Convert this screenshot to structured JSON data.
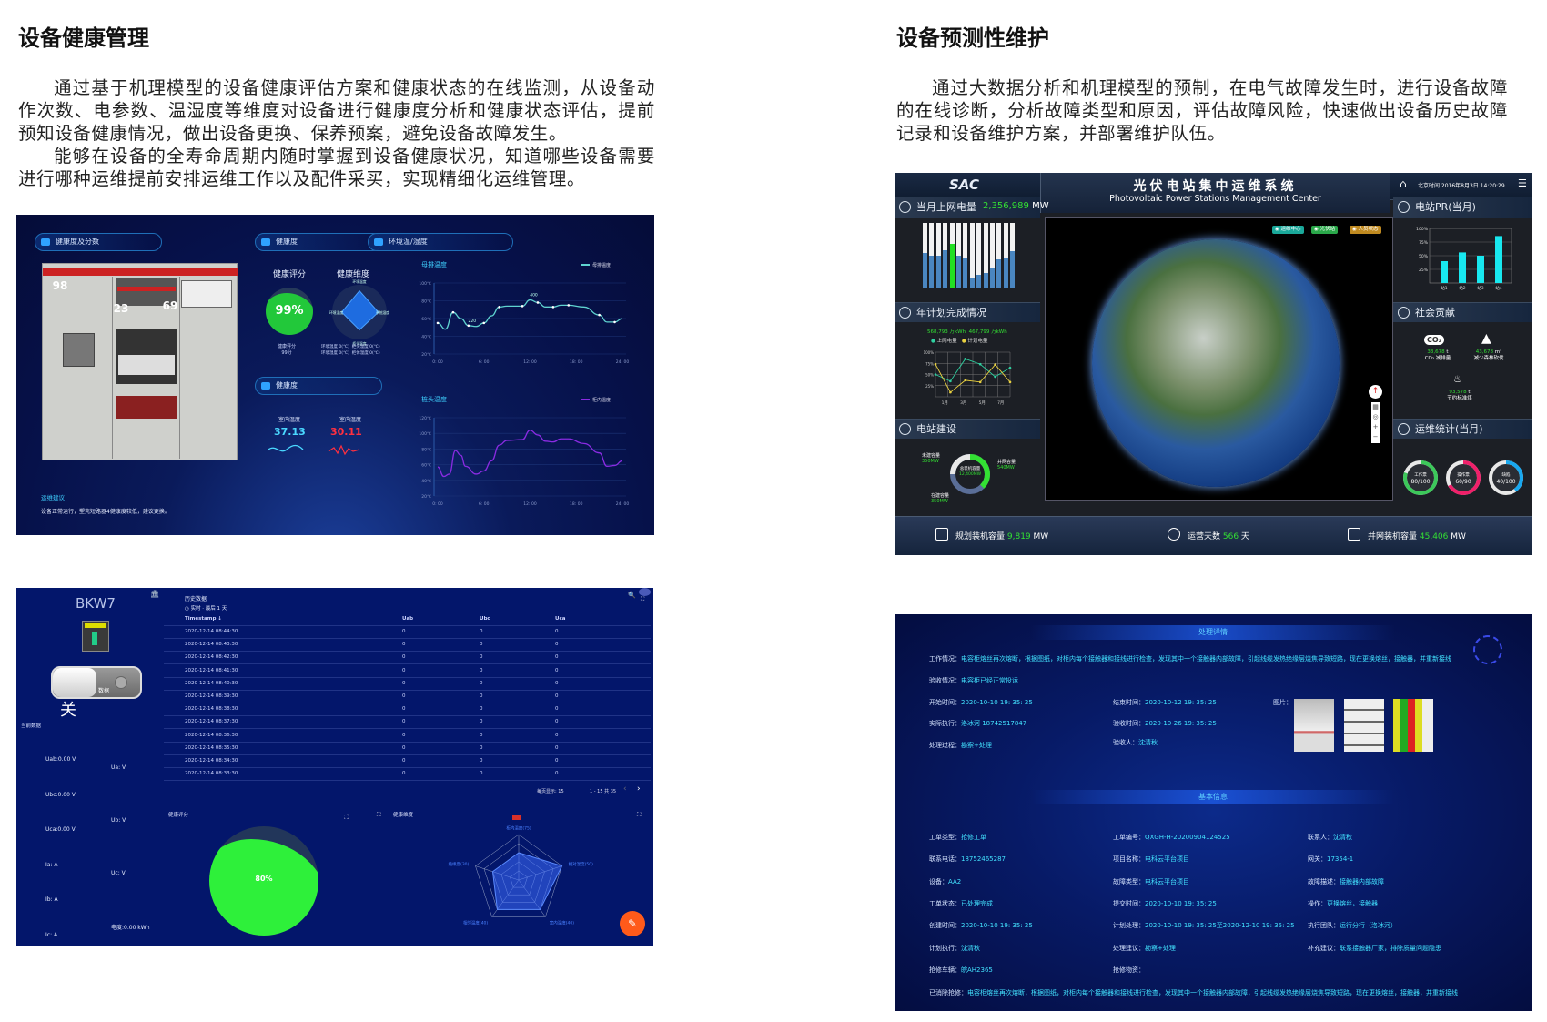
{
  "left": {
    "title": "设备健康管理",
    "paragraphs": [
      "通过基于机理模型的设备健康评估方案和健康状态的在线监测，从设备动作次数、电参数、温湿度等维度对设备进行健康度分析和健康状态评估，提前预知设备健康情况，做出设备更换、保养预案，避免设备故障发生。",
      "能够在设备的全寿命周期内随时掌握到设备健康状况，知道哪些设备需要进行哪种运维提前安排运维工作以及配件采买，实现精细化运维管理。"
    ]
  },
  "right": {
    "title": "设备预测性维护",
    "paragraphs": [
      "通过大数据分析和机理模型的预制，在电气故障发生时，进行设备故障的在线诊断，分析故障类型和原因，评估故障风险，快速做出设备历史故障记录和设备维护方案，并部署维护队伍。"
    ]
  },
  "panelA": {
    "sec_health_score": "健康度及分数",
    "sec_health": "健康度",
    "sec_health2": "健康度",
    "sec_env": "环境温/湿度",
    "badges": [
      {
        "value": "98",
        "color": "#2bb34a"
      },
      {
        "value": "23",
        "color": "#e8202a"
      },
      {
        "value": "69",
        "color": "#e0962a"
      }
    ],
    "score_title": "健康评分",
    "score_value": "99%",
    "score_level": 0.99,
    "score_caption": "健康评分",
    "score_points": "99分",
    "dim_title": "健康维度",
    "dim_labels": [
      "环境温度",
      "系统湿度",
      "柜头温度",
      "环境湿度"
    ],
    "dim_levels": [
      0.9,
      0.8,
      0.75,
      0.75
    ],
    "dim_readings": [
      "环境温度 0(℃)",
      "柜头温度 0(℃)",
      "环境湿度 0(℃)",
      "柜体温度 0(℃)"
    ],
    "indoor1_label": "室内温度",
    "indoor1_value": "37.13",
    "indoor2_label": "室内温度",
    "indoor2_value": "30.11",
    "advice_title": "运维建议",
    "advice_text": "设备正常运行，塑壳短路器4健康度较低，建议更换。",
    "chart_busbar": {
      "type": "line",
      "title": "母排温度",
      "legend": "母排温度",
      "color": "#5fd3d0",
      "ylim": [
        20,
        100
      ],
      "yticks": [
        "20℃",
        "40℃",
        "60℃",
        "80℃",
        "100℃"
      ],
      "xticks": [
        "0: 00",
        "6: 00",
        "12: 00",
        "18: 00",
        "24: 00"
      ],
      "x": [
        0,
        1,
        2,
        3,
        4,
        5,
        6,
        7,
        8,
        9,
        11,
        12,
        13,
        14,
        15,
        16,
        17,
        19,
        21,
        22,
        23,
        24
      ],
      "y": [
        55,
        48,
        67,
        60,
        52,
        51,
        55,
        63,
        73,
        74,
        74,
        81,
        78,
        73,
        73,
        75,
        75,
        73,
        64,
        56,
        56,
        60
      ],
      "annotations": [
        {
          "x": 4,
          "label": "220"
        },
        {
          "x": 12,
          "label": "400"
        }
      ]
    },
    "chart_terminal": {
      "type": "line",
      "title": "桩头温度",
      "legend": "柜内温度",
      "color": "#8a2be2",
      "ylim": [
        20,
        120
      ],
      "yticks": [
        "20℃",
        "40℃",
        "60℃",
        "80℃",
        "100℃",
        "120℃"
      ],
      "xticks": [
        "0: 00",
        "6: 00",
        "12: 00",
        "18: 00",
        "24: 00"
      ],
      "x": [
        0,
        0.8,
        1.5,
        2.3,
        3,
        3.6,
        5,
        6,
        7,
        8,
        9,
        11,
        12,
        13,
        14,
        15,
        16,
        17,
        19,
        21,
        22,
        23,
        24
      ],
      "y": [
        57,
        45,
        48,
        78,
        72,
        58,
        48,
        52,
        65,
        85,
        91,
        92,
        104,
        98,
        90,
        89,
        93,
        93,
        87,
        75,
        58,
        59,
        65
      ]
    }
  },
  "panelB": {
    "device_name": "BKW7",
    "switch_label": "数据",
    "switch_state": "关",
    "current_data": "当前数据",
    "readings_left": [
      "Uab:0.00 V",
      "Ubc:0.00 V",
      "Uca:0.00 V",
      "Ia: A",
      "Ib: A",
      "Ic: A"
    ],
    "readings_right": [
      "Ua: V",
      "Ub: V",
      "Uc: V",
      "电度:0.00 kWh"
    ],
    "history_title": "历史数据",
    "history_range": "实时 · 最后 1 天",
    "columns": [
      "Timestamp ↓",
      "Uab",
      "Ubc",
      "Uca"
    ],
    "rows": [
      [
        "2020-12-14 08:44:30",
        "0",
        "0",
        "0"
      ],
      [
        "2020-12-14 08:43:30",
        "0",
        "0",
        "0"
      ],
      [
        "2020-12-14 08:42:30",
        "0",
        "0",
        "0"
      ],
      [
        "2020-12-14 08:41:30",
        "0",
        "0",
        "0"
      ],
      [
        "2020-12-14 08:40:30",
        "0",
        "0",
        "0"
      ],
      [
        "2020-12-14 08:39:30",
        "0",
        "0",
        "0"
      ],
      [
        "2020-12-14 08:38:30",
        "0",
        "0",
        "0"
      ],
      [
        "2020-12-14 08:37:30",
        "0",
        "0",
        "0"
      ],
      [
        "2020-12-14 08:36:30",
        "0",
        "0",
        "0"
      ],
      [
        "2020-12-14 08:35:30",
        "0",
        "0",
        "0"
      ],
      [
        "2020-12-14 08:34:30",
        "0",
        "0",
        "0"
      ],
      [
        "2020-12-14 08:33:30",
        "0",
        "0",
        "0"
      ]
    ],
    "page_size_label": "每页显示: 15",
    "page_range": "1 - 15 共 35",
    "prev": "‹",
    "next": "›",
    "score_title": "健康评分",
    "score_value": "80%",
    "score_level": 0.8,
    "dim_title": "健康维度",
    "radar": {
      "type": "radar",
      "labels": [
        "柜内温度(75)",
        "相对湿度(50)",
        "室内温度(40)",
        "相邻温度(40)",
        "绝缘度(30)"
      ],
      "levels": [
        0.6,
        1.0,
        0.8,
        0.8,
        0.6
      ],
      "color": "#3b6cff"
    }
  },
  "panelC": {
    "logo": "SAC",
    "title": "光伏电站集中运维系统",
    "subtitle": "Photovoltaic Power Stations Management Center",
    "datetime": "北京时间 2016年8月3日 14:20:29",
    "monthly_label": "当月上网电量",
    "monthly_value": "2,356,989",
    "monthly_unit": "MW",
    "monthly_bars": {
      "type": "bar",
      "values": [
        0.53,
        0.5,
        0.49,
        0.58,
        0.68,
        0.5,
        0.47,
        0.16,
        0.2,
        0.23,
        0.3,
        0.43,
        0.47,
        0.57
      ],
      "highlight_index": 4
    },
    "plan_label": "年计划完成情况",
    "plan_value1": "568,793 万kWh",
    "plan_value2": "467,799 万kWh",
    "plan_legend1": "上网电量",
    "plan_legend2": "计划电量",
    "plan_chart": {
      "type": "line",
      "yticks": [
        "25%",
        "50%",
        "75%",
        "100%"
      ],
      "xticks": [
        "1月",
        "3月",
        "5月",
        "7月"
      ],
      "ylim": [
        0,
        100
      ],
      "series": [
        {
          "name": "上网电量",
          "color": "#2fd0a0",
          "values": [
            50,
            35,
            85,
            73,
            45,
            65
          ]
        },
        {
          "name": "计划电量",
          "color": "#e8d040",
          "values": [
            73,
            10,
            37,
            33,
            72,
            33
          ]
        }
      ]
    },
    "build_label": "电站建设",
    "donut_center_label": "总装机容量",
    "donut_center_value": "12,400MW",
    "donut_items": [
      {
        "label": "未建容量",
        "value": "350MW"
      },
      {
        "label": "并网容量",
        "value": "540MW"
      },
      {
        "label": "在建容量",
        "value": "350MW"
      }
    ],
    "map_tags": [
      {
        "label": "运维中心",
        "color": "#1aa89a"
      },
      {
        "label": "光伏站",
        "color": "#2aa84a"
      },
      {
        "label": "人员状态",
        "color": "#c08a20"
      }
    ],
    "pr_label": "电站PR(当月)",
    "pr_chart": {
      "type": "bar",
      "categories": [
        "站1",
        "站2",
        "站3",
        "站4"
      ],
      "values": [
        40,
        56,
        50,
        86
      ],
      "yticks": [
        "25%",
        "50%",
        "75%",
        "100%"
      ],
      "ylim": [
        0,
        100
      ],
      "color": "#18e8f0"
    },
    "social_label": "社会贡献",
    "co2_icon": "CO₂",
    "co2_value": "33,678",
    "co2_unit": "t",
    "co2_label": "CO₂ 减排量",
    "forest_value": "43,678",
    "forest_unit": "m³",
    "forest_label": "减少森林砍伐",
    "coal_value": "93,578",
    "coal_unit": "t",
    "coal_label": "节约标准煤",
    "ops_label": "运维统计(当月)",
    "gauges": [
      {
        "label": "工作票",
        "value": "80/100",
        "fraction": 0.8,
        "color": "#3cc85a"
      },
      {
        "label": "操作票",
        "value": "60/90",
        "fraction": 0.67,
        "color": "#f0206a"
      },
      {
        "label": "缺陷",
        "value": "40/100",
        "fraction": 0.4,
        "color": "#18a8f0"
      }
    ],
    "bottom": [
      {
        "label": "规划装机容量",
        "value": "9,819",
        "unit": "MW"
      },
      {
        "label": "运营天数",
        "value": "566",
        "unit": "天"
      },
      {
        "label": "并网装机容量",
        "value": "45,406",
        "unit": "MW"
      }
    ]
  },
  "panelD": {
    "detail_title": "处理详情",
    "work_status": {
      "k": "工作情况：",
      "v": "电容柜熔丝再次熔断，根据图纸，对柜内每个接触器和接线进行检查，发现其中一个接触器内部故障，引起线缆发热绝缘层烧焦导致短路，现在更换熔丝，接触器，并重新接线"
    },
    "accept_status": {
      "k": "验收情况：",
      "v": "电容柜已经正常投运"
    },
    "start_time": {
      "k": "开始时间：",
      "v": "2020-10-10 19: 35: 25"
    },
    "end_time": {
      "k": "结束时间：",
      "v": "2020-10-12 19: 35: 25"
    },
    "executor": {
      "k": "实际执行：",
      "v": "洛冰河 18742517847"
    },
    "accept_time": {
      "k": "验收时间：",
      "v": "2020-10-26 19: 35: 25"
    },
    "process": {
      "k": "处理过程：",
      "v": "勘察+处理"
    },
    "acceptor": {
      "k": "验收人：",
      "v": "沈清秋"
    },
    "images_label": "图片：",
    "basic_title": "基本信息",
    "basic": [
      [
        {
          "k": "工单类型：",
          "v": "抢修工单"
        },
        {
          "k": "工单编号：",
          "v": "QXGH-H-20200904124525"
        },
        {
          "k": "联系人：",
          "v": "沈清秋"
        }
      ],
      [
        {
          "k": "联系电话：",
          "v": "18752465287"
        },
        {
          "k": "项目名称：",
          "v": "电科云平台项目"
        },
        {
          "k": "网关：",
          "v": "17354-1"
        }
      ],
      [
        {
          "k": "设备：",
          "v": "AA2"
        },
        {
          "k": "故障类型：",
          "v": "电科云平台项目"
        },
        {
          "k": "故障描述：",
          "v": "接触器内部故障"
        }
      ],
      [
        {
          "k": "工单状态：",
          "v": "已处理完成"
        },
        {
          "k": "提交时间：",
          "v": "2020-10-10 19: 35: 25"
        },
        {
          "k": "操作：",
          "v": "更换熔丝，接触器"
        }
      ],
      [
        {
          "k": "创建时间：",
          "v": "2020-10-10 19: 35: 25"
        },
        {
          "k": "计划处理：",
          "v": "2020-10-10 19: 35: 25至2020-12-10 19: 35: 25"
        },
        {
          "k": "执行团队：",
          "v": "运行分行（洛冰河）"
        }
      ],
      [
        {
          "k": "计划执行：",
          "v": "沈清秋"
        },
        {
          "k": "处理建议：",
          "v": "勘察+处理"
        },
        {
          "k": "补充建议：",
          "v": "联系接触器厂家，排除质量问题隐患"
        }
      ],
      [
        {
          "k": "抢修车辆：",
          "v": "皖AH2365"
        },
        {
          "k": "抢修物资：",
          "v": ""
        },
        null
      ]
    ],
    "resolved": {
      "k": "已消除抢修：",
      "v": "电容柜熔丝再次熔断，根据图纸，对柜内每个接触器和接线进行检查，发现其中一个接触器内部故障，引起线缆发热绝缘层烧焦导致短路，现在更换熔丝，接触器，并重新接线"
    }
  }
}
